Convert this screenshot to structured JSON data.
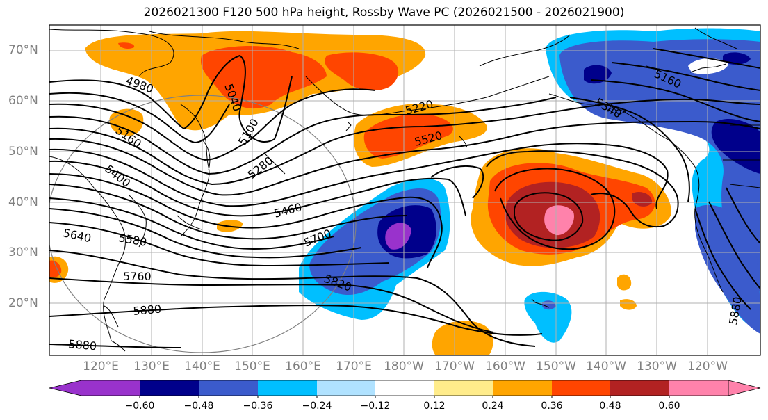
{
  "title": "2026021300 F120 500 hPa height, Rossby Wave PC (2026021500 - 2026021900)",
  "lat_labels": [
    "70°N",
    "60°N",
    "50°N",
    "40°N",
    "30°N",
    "20°N"
  ],
  "lon_labels": [
    "120°E",
    "130°E",
    "140°E",
    "150°E",
    "160°E",
    "170°E",
    "180°W",
    "170°W",
    "160°W",
    "150°W",
    "140°W",
    "130°W",
    "120°W"
  ],
  "contour_labels": [
    "4980",
    "5040",
    "5100",
    "5160",
    "5220",
    "5280",
    "5340",
    "5400",
    "5460",
    "5520",
    "5580",
    "5640",
    "5700",
    "5760",
    "5820",
    "5880",
    "5880",
    "5880"
  ],
  "colorbar": {
    "ticks": [
      "−0.60",
      "−0.48",
      "−0.36",
      "−0.24",
      "−0.12",
      "0.12",
      "0.24",
      "0.36",
      "0.48",
      "0.60"
    ],
    "colors": [
      "#9932cc",
      "#00008b",
      "#3b5bcc",
      "#00bfff",
      "#b0e2ff",
      "#ffffff",
      "#ffec8b",
      "#ffa500",
      "#ff4500",
      "#b22222",
      "#ff82ab"
    ]
  }
}
